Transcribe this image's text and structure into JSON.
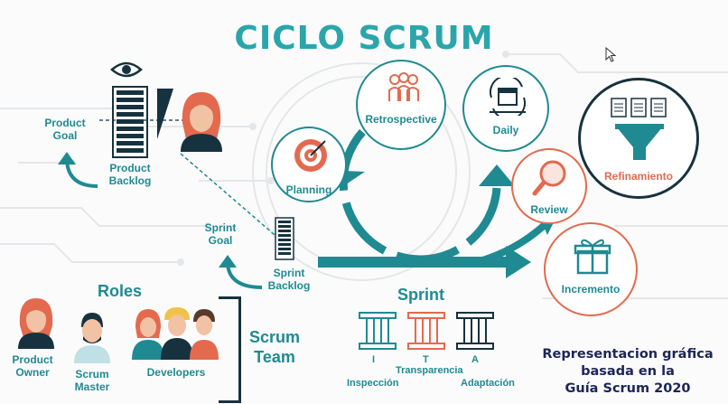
{
  "title": "CICLO SCRUM",
  "artifacts": {
    "product_goal": [
      "Product",
      "Goal"
    ],
    "product_backlog": [
      "Product",
      "Backlog"
    ],
    "sprint_goal": [
      "Sprint",
      "Goal"
    ],
    "sprint_backlog": [
      "Sprint",
      "Backlog"
    ]
  },
  "events": {
    "planning": "Planning",
    "retrospective": "Retrospective",
    "daily": "Daily",
    "refinamiento": "Refinamiento",
    "review": "Review",
    "incremento": "Incremento"
  },
  "roles": {
    "title": "Roles",
    "product_owner": [
      "Product",
      "Owner"
    ],
    "scrum_master": [
      "Scrum",
      "Master"
    ],
    "developers": "Developers",
    "scrum_team": [
      "Scrum",
      "Team"
    ]
  },
  "sprint": {
    "title": "Sprint",
    "pillars": [
      {
        "letter": "I",
        "label": "Inspección"
      },
      {
        "letter": "T",
        "label": "Transparencia"
      },
      {
        "letter": "A",
        "label": "Adaptación"
      }
    ]
  },
  "footer": [
    "Representacion gráfica",
    "basada en la",
    "Guía Scrum 2020"
  ],
  "colors": {
    "teal": "#1f8a92",
    "orange": "#e36a4e",
    "navy": "#16323f",
    "footer": "#1c2658"
  }
}
